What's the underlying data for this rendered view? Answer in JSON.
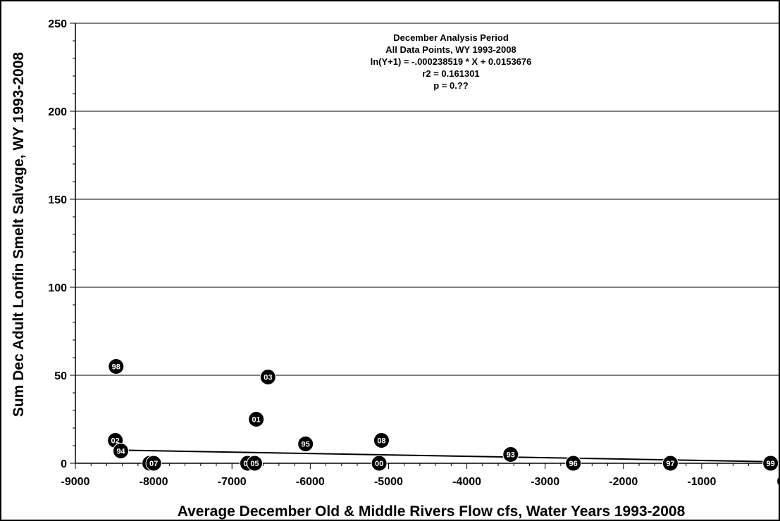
{
  "chart_data": {
    "type": "scatter",
    "annotation": [
      "December Analysis Period",
      "All Data Points, WY 1993-2008",
      "ln(Y+1) = -.000238519 * X + 0.0153676",
      "r2 = 0.161301",
      "p = 0.??"
    ],
    "xlabel": "Average December Old & Middle Rivers Flow cfs, Water Years 1993-2008",
    "ylabel": "Sum Dec Adult Lonfin Smelt Salvage, WY 1993-2008",
    "xlim": [
      -9000,
      0
    ],
    "ylim": [
      0,
      250
    ],
    "x_ticks": [
      -9000,
      -8000,
      -7000,
      -6000,
      -5000,
      -4000,
      -3000,
      -2000,
      -1000,
      0
    ],
    "x_tick_labels": [
      "-9000",
      "-8000",
      "-7000",
      "-6000",
      "-5000",
      "-4000",
      "-3000",
      "-2000",
      "-1000",
      "0"
    ],
    "y_ticks": [
      0,
      50,
      100,
      150,
      200,
      250
    ],
    "y_tick_labels": [
      "0",
      "50",
      "100",
      "150",
      "200",
      "250"
    ],
    "grid": "horizontal",
    "points": [
      {
        "label": "98",
        "x": -8480,
        "y": 55
      },
      {
        "label": "02",
        "x": -8490,
        "y": 13
      },
      {
        "label": "94",
        "x": -8420,
        "y": 7
      },
      {
        "label": "06",
        "x": -8050,
        "y": 0
      },
      {
        "label": "07",
        "x": -8000,
        "y": 0
      },
      {
        "label": "04",
        "x": -6800,
        "y": 0
      },
      {
        "label": "05",
        "x": -6710,
        "y": 0
      },
      {
        "label": "01",
        "x": -6690,
        "y": 25
      },
      {
        "label": "03",
        "x": -6540,
        "y": 49
      },
      {
        "label": "95",
        "x": -6060,
        "y": 11
      },
      {
        "label": "08",
        "x": -5090,
        "y": 13
      },
      {
        "label": "00",
        "x": -5120,
        "y": 0
      },
      {
        "label": "93",
        "x": -3440,
        "y": 5
      },
      {
        "label": "96",
        "x": -2640,
        "y": 0
      },
      {
        "label": "97",
        "x": -1400,
        "y": 0
      },
      {
        "label": "99",
        "x": -120,
        "y": 0
      }
    ],
    "trendline": {
      "x": [
        -8480,
        -120
      ],
      "y": [
        7.5,
        0.9
      ]
    }
  }
}
